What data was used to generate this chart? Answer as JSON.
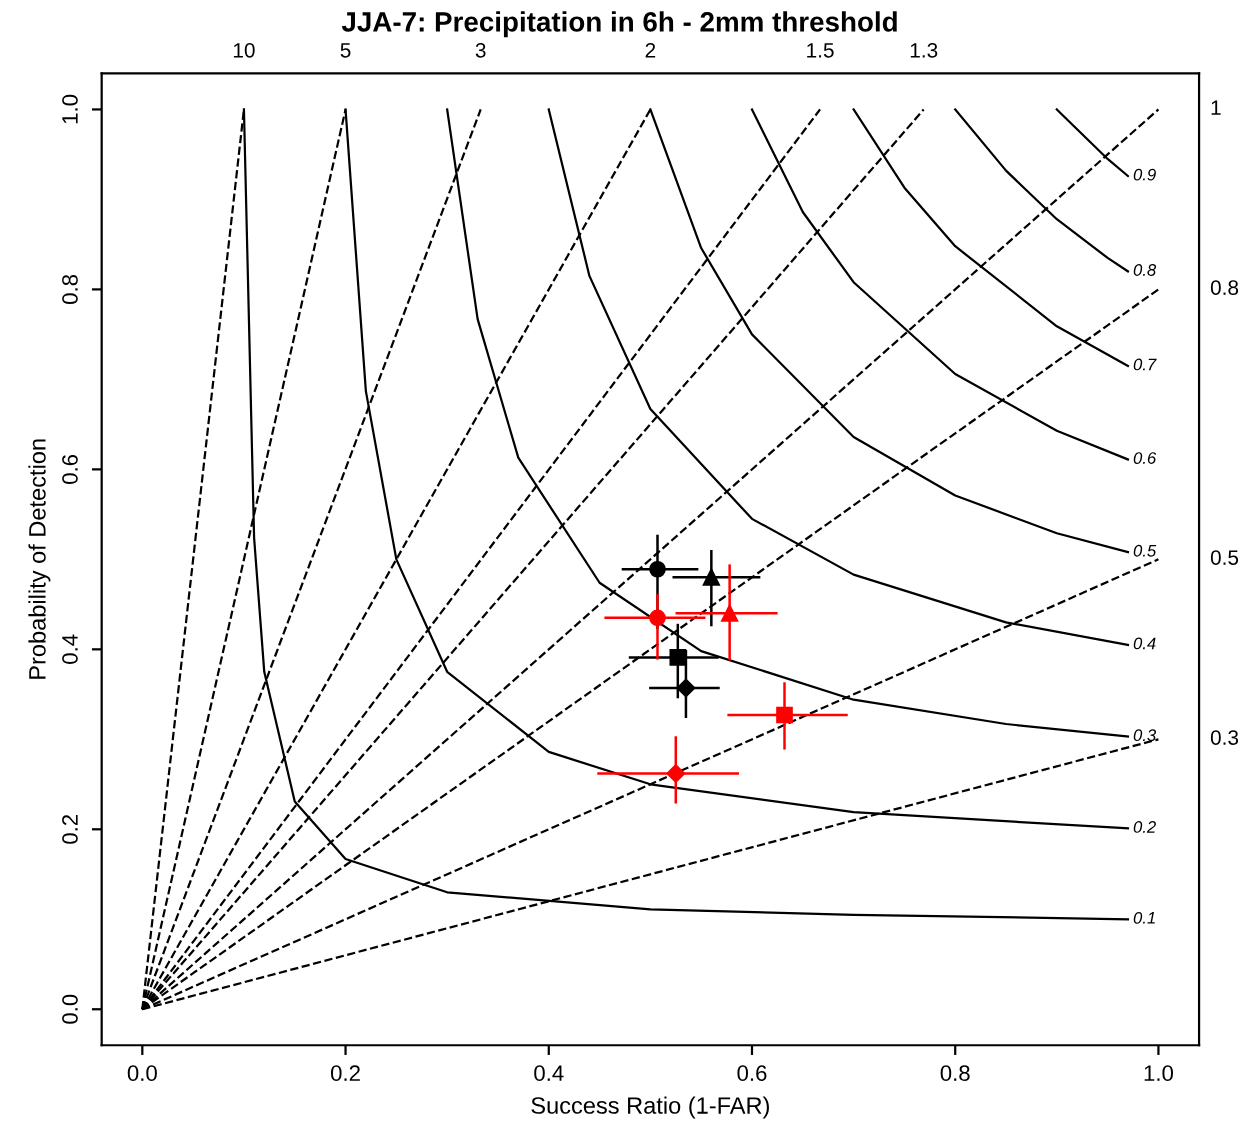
{
  "chart_data": {
    "type": "scatter",
    "title": "JJA-7: Precipitation in 6h - 2mm threshold",
    "xlabel": "Success Ratio (1-FAR)",
    "ylabel": "Probability of Detection",
    "xlim": [
      -0.04,
      1.04
    ],
    "ylim": [
      -0.04,
      1.04
    ],
    "xticks": [
      {
        "value": 0,
        "label": "0.0"
      },
      0.2,
      0.4,
      0.6,
      0.8,
      {
        "value": 1,
        "label": "1.0"
      }
    ],
    "yticks": [
      {
        "value": 0,
        "label": "0.0"
      },
      0.2,
      0.4,
      0.6,
      0.8,
      {
        "value": 1,
        "label": "1.0"
      }
    ],
    "grid": false,
    "legend": false,
    "series": [
      {
        "name": "0.1",
        "type": "line",
        "line_style": "solid",
        "color": "#000000",
        "x": [
          0.1,
          0.11,
          0.12,
          0.15,
          0.2,
          0.3,
          0.5,
          0.7,
          0.97
        ],
        "values": [
          1,
          0.524,
          0.375,
          0.231,
          0.167,
          0.13,
          0.111,
          0.105,
          0.1
        ]
      },
      {
        "name": "0.2",
        "type": "line",
        "line_style": "solid",
        "color": "#000000",
        "x": [
          0.2,
          0.22,
          0.25,
          0.3,
          0.4,
          0.5,
          0.7,
          0.97
        ],
        "values": [
          1,
          0.687,
          0.5,
          0.375,
          0.286,
          0.25,
          0.219,
          0.201
        ]
      },
      {
        "name": "0.3",
        "type": "line",
        "line_style": "solid",
        "color": "#000000",
        "x": [
          0.3,
          0.33,
          0.37,
          0.45,
          0.55,
          0.7,
          0.85,
          0.97
        ],
        "values": [
          1,
          0.767,
          0.613,
          0.474,
          0.398,
          0.344,
          0.317,
          0.303
        ]
      },
      {
        "name": "0.4",
        "type": "line",
        "line_style": "solid",
        "color": "#000000",
        "x": [
          0.4,
          0.44,
          0.5,
          0.6,
          0.7,
          0.85,
          0.97
        ],
        "values": [
          1,
          0.815,
          0.667,
          0.545,
          0.483,
          0.43,
          0.405
        ]
      },
      {
        "name": "0.5",
        "type": "line",
        "line_style": "solid",
        "color": "#000000",
        "x": [
          0.5,
          0.55,
          0.6,
          0.7,
          0.8,
          0.9,
          0.97
        ],
        "values": [
          1,
          0.846,
          0.75,
          0.636,
          0.571,
          0.529,
          0.508
        ]
      },
      {
        "name": "0.6",
        "type": "line",
        "line_style": "solid",
        "color": "#000000",
        "x": [
          0.6,
          0.65,
          0.7,
          0.8,
          0.9,
          0.97
        ],
        "values": [
          1,
          0.886,
          0.808,
          0.706,
          0.643,
          0.611
        ]
      },
      {
        "name": "0.7",
        "type": "line",
        "line_style": "solid",
        "color": "#000000",
        "x": [
          0.7,
          0.75,
          0.8,
          0.9,
          0.97
        ],
        "values": [
          1,
          0.913,
          0.848,
          0.759,
          0.715
        ]
      },
      {
        "name": "0.8",
        "type": "line",
        "line_style": "solid",
        "color": "#000000",
        "x": [
          0.8,
          0.85,
          0.9,
          0.95,
          0.97
        ],
        "values": [
          1,
          0.932,
          0.878,
          0.835,
          0.82
        ]
      },
      {
        "name": "0.9",
        "type": "line",
        "line_style": "solid",
        "color": "#000000",
        "x": [
          0.9,
          0.95,
          0.97
        ],
        "values": [
          1,
          0.945,
          0.926
        ]
      },
      {
        "name": "10",
        "type": "line",
        "line_style": "dashed",
        "color": "#000000",
        "x": [
          0,
          0.1
        ],
        "values": [
          0,
          1
        ]
      },
      {
        "name": "5",
        "type": "line",
        "line_style": "dashed",
        "color": "#000000",
        "x": [
          0,
          0.2
        ],
        "values": [
          0,
          1
        ]
      },
      {
        "name": "3",
        "type": "line",
        "line_style": "dashed",
        "color": "#000000",
        "x": [
          0,
          0.333
        ],
        "values": [
          0,
          1
        ]
      },
      {
        "name": "2",
        "type": "line",
        "line_style": "dashed",
        "color": "#000000",
        "x": [
          0,
          0.5
        ],
        "values": [
          0,
          1
        ]
      },
      {
        "name": "1.5",
        "type": "line",
        "line_style": "dashed",
        "color": "#000000",
        "x": [
          0,
          0.667
        ],
        "values": [
          0,
          1
        ]
      },
      {
        "name": "1.3",
        "type": "line",
        "line_style": "dashed",
        "color": "#000000",
        "x": [
          0,
          0.769
        ],
        "values": [
          0,
          1
        ]
      },
      {
        "name": "1",
        "type": "line",
        "line_style": "dashed",
        "color": "#000000",
        "x": [
          0,
          1
        ],
        "values": [
          0,
          1
        ]
      },
      {
        "name": "0.8",
        "type": "line",
        "line_style": "dashed",
        "color": "#000000",
        "x": [
          0,
          1
        ],
        "values": [
          0,
          0.8
        ]
      },
      {
        "name": "0.5",
        "type": "line",
        "line_style": "dashed",
        "color": "#000000",
        "x": [
          0,
          1
        ],
        "values": [
          0,
          0.5
        ]
      },
      {
        "name": "0.3",
        "type": "line",
        "line_style": "dashed",
        "color": "#000000",
        "x": [
          0,
          1
        ],
        "values": [
          0,
          0.3
        ]
      },
      {
        "marker": "circle",
        "color": "#000000",
        "x": [
          0.507
        ],
        "values": [
          0.489
        ],
        "xerrors": [
          [
            0.473,
            0.546
          ]
        ],
        "errors": [
          [
            0.424,
            0.526
          ]
        ]
      },
      {
        "marker": "triangle",
        "color": "#000000",
        "x": [
          0.56
        ],
        "values": [
          0.48
        ],
        "xerrors": [
          [
            0.523,
            0.607
          ]
        ],
        "errors": [
          [
            0.427,
            0.509
          ]
        ]
      },
      {
        "marker": "square",
        "color": "#000000",
        "x": [
          0.527
        ],
        "values": [
          0.391
        ],
        "xerrors": [
          [
            0.48,
            0.566
          ]
        ],
        "errors": [
          [
            0.347,
            0.427
          ]
        ]
      },
      {
        "marker": "diamond",
        "color": "#000000",
        "x": [
          0.535
        ],
        "values": [
          0.357
        ],
        "xerrors": [
          [
            0.5,
            0.567
          ]
        ],
        "errors": [
          [
            0.325,
            0.398
          ]
        ]
      },
      {
        "marker": "circle",
        "color": "#ff0000",
        "x": [
          0.507
        ],
        "values": [
          0.435
        ],
        "xerrors": [
          [
            0.456,
            0.553
          ]
        ],
        "errors": [
          [
            0.39,
            0.46
          ]
        ]
      },
      {
        "marker": "triangle",
        "color": "#ff0000",
        "x": [
          0.578
        ],
        "values": [
          0.44
        ],
        "xerrors": [
          [
            0.526,
            0.624
          ]
        ],
        "errors": [
          [
            0.389,
            0.493
          ]
        ]
      },
      {
        "marker": "square",
        "color": "#ff0000",
        "x": [
          0.632
        ],
        "values": [
          0.327
        ],
        "xerrors": [
          [
            0.577,
            0.693
          ]
        ],
        "errors": [
          [
            0.29,
            0.362
          ]
        ]
      },
      {
        "marker": "diamond",
        "color": "#ff0000",
        "x": [
          0.525
        ],
        "values": [
          0.262
        ],
        "xerrors": [
          [
            0.449,
            0.586
          ]
        ],
        "errors": [
          [
            0.23,
            0.302
          ]
        ]
      }
    ]
  }
}
